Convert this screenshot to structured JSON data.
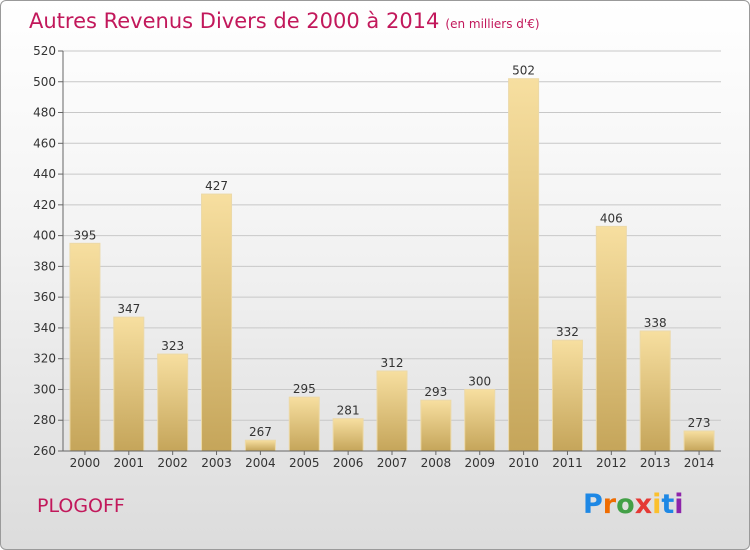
{
  "title": "Autres Revenus Divers de 2000 à 2014",
  "unit": "(en milliers d'€)",
  "commune": "PLOGOFF",
  "logo": {
    "text": "Proxiti"
  },
  "colors": {
    "title": "#c2185b",
    "bar_light": "#f7dfa0",
    "bar_dark": "#c5a55a"
  },
  "chart_data": {
    "type": "bar",
    "title": "Autres Revenus Divers de 2000 à 2014",
    "subtitle": "(en milliers d'€)",
    "categories": [
      "2000",
      "2001",
      "2002",
      "2003",
      "2004",
      "2005",
      "2006",
      "2007",
      "2008",
      "2009",
      "2010",
      "2011",
      "2012",
      "2013",
      "2014"
    ],
    "values": [
      395,
      347,
      323,
      427,
      267,
      295,
      281,
      312,
      293,
      300,
      502,
      332,
      406,
      338,
      273
    ],
    "ylim": [
      260,
      520
    ],
    "yticks": [
      260,
      280,
      300,
      320,
      340,
      360,
      380,
      400,
      420,
      440,
      460,
      480,
      500,
      520
    ],
    "grid": true
  }
}
